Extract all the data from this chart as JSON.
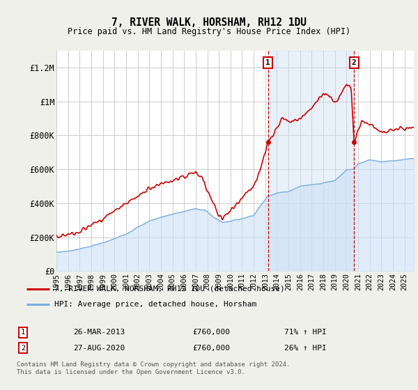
{
  "title": "7, RIVER WALK, HORSHAM, RH12 1DU",
  "subtitle": "Price paid vs. HM Land Registry's House Price Index (HPI)",
  "ylabel_ticks": [
    "£0",
    "£200K",
    "£400K",
    "£600K",
    "£800K",
    "£1M",
    "£1.2M"
  ],
  "ylim": [
    0,
    1300000
  ],
  "yticks": [
    0,
    200000,
    400000,
    600000,
    800000,
    1000000,
    1200000
  ],
  "xlim_start": 1995.0,
  "xlim_end": 2025.8,
  "marker1_x": 2013.23,
  "marker1_y": 760000,
  "marker2_x": 2020.65,
  "marker2_y": 760000,
  "marker1_date": "26-MAR-2013",
  "marker1_price": "£760,000",
  "marker1_hpi": "71% ↑ HPI",
  "marker2_date": "27-AUG-2020",
  "marker2_price": "£760,000",
  "marker2_hpi": "26% ↑ HPI",
  "legend_line1": "7, RIVER WALK, HORSHAM, RH12 1DU (detached house)",
  "legend_line2": "HPI: Average price, detached house, Horsham",
  "footer": "Contains HM Land Registry data © Crown copyright and database right 2024.\nThis data is licensed under the Open Government Licence v3.0.",
  "line_color_red": "#cc0000",
  "line_color_blue": "#7aade0",
  "fill_color_blue": "#cce0f5",
  "marker_box_color": "#cc0000",
  "background_color": "#f0f0eb",
  "plot_bg_color": "#ffffff",
  "shaded_region_color": "#cce0f5",
  "grid_color": "#cccccc"
}
